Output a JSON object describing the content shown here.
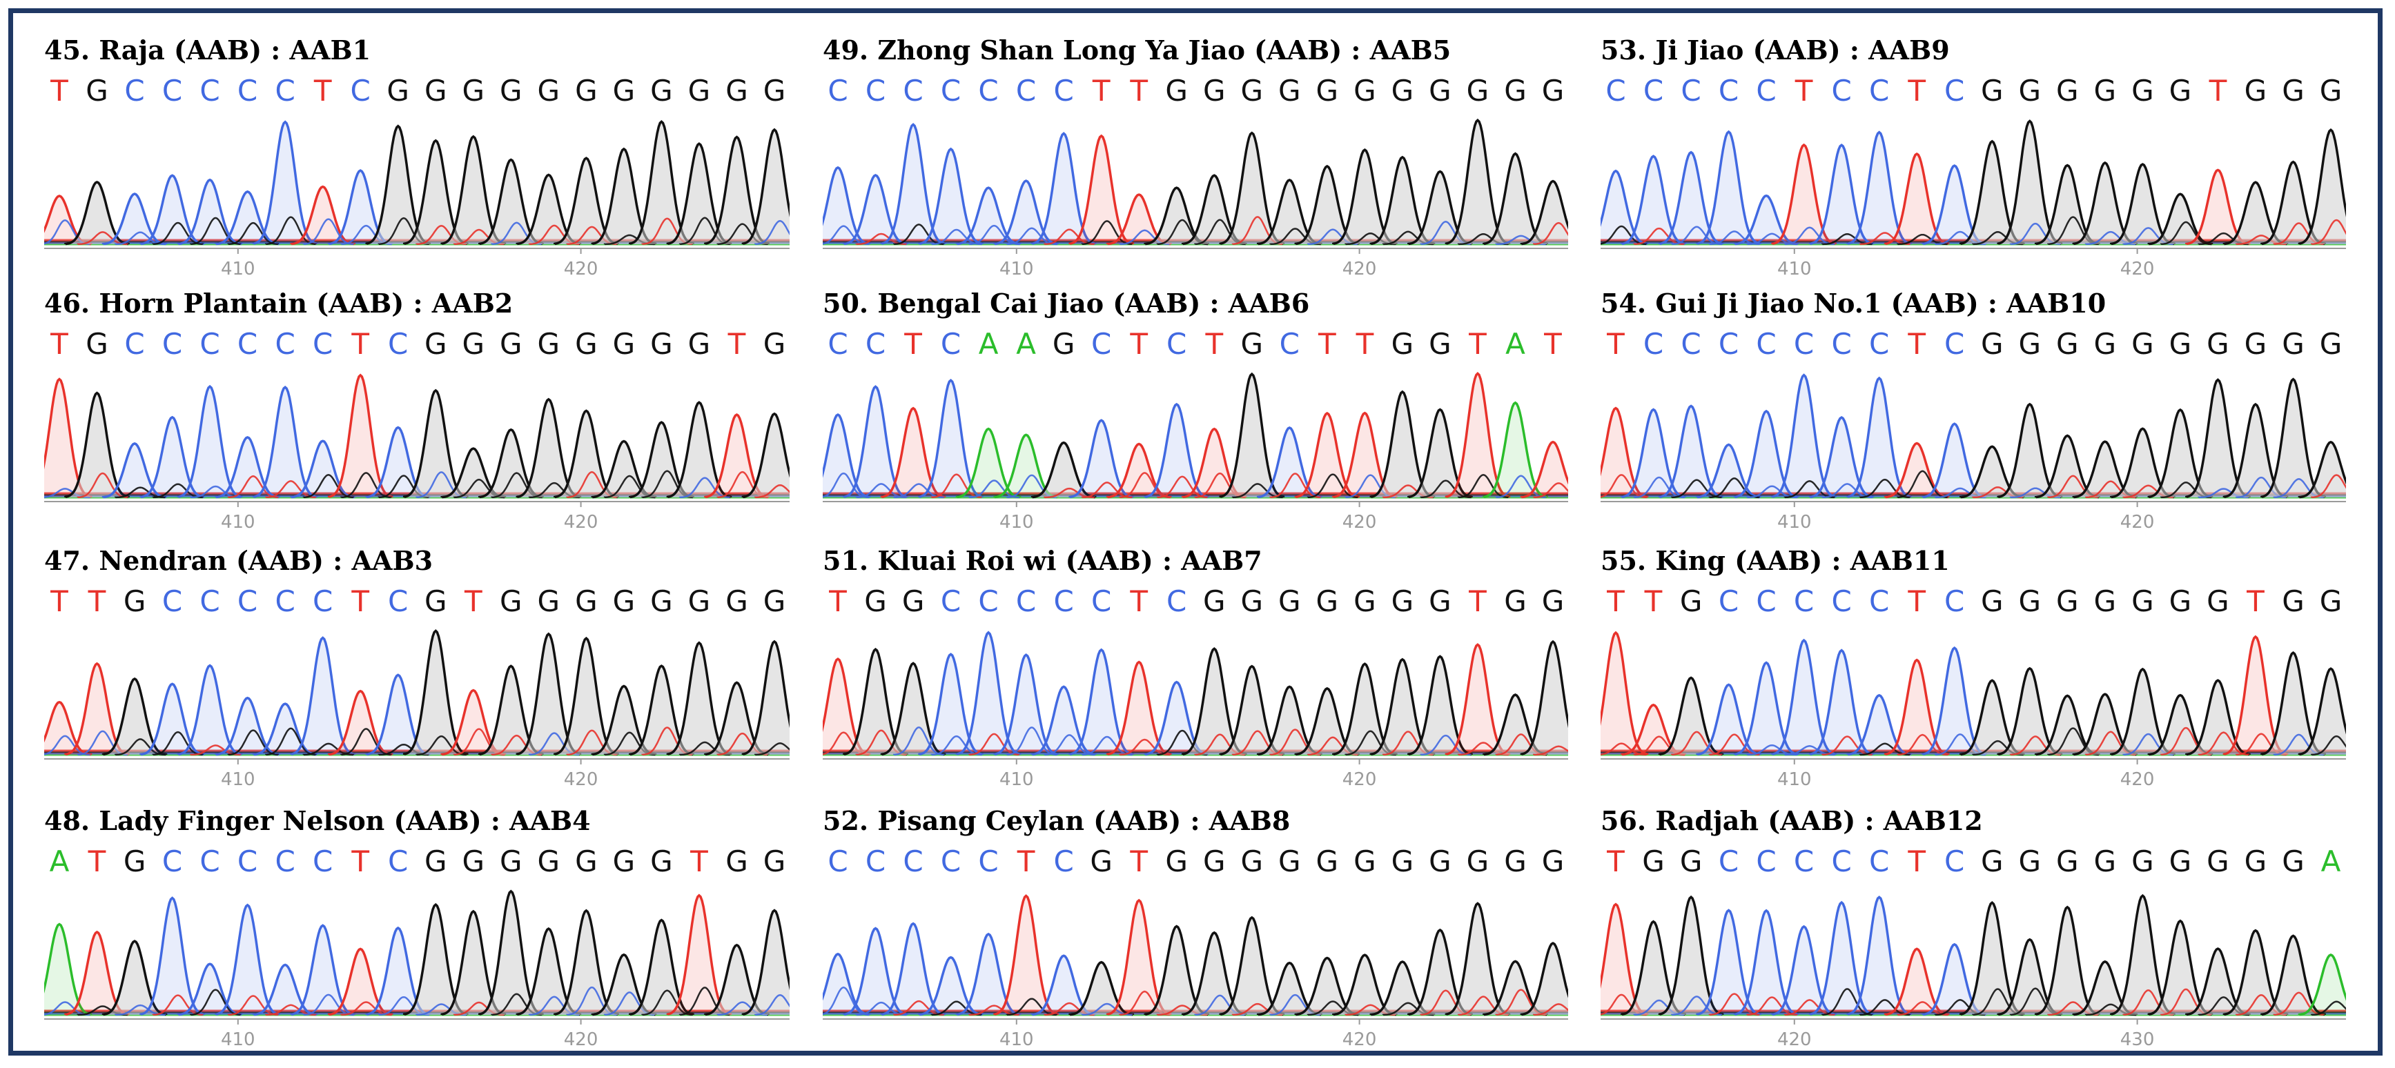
{
  "figure": {
    "border_color": "#1f3864",
    "base_colors": {
      "A": "#2bbd2b",
      "C": "#4169e1",
      "G": "#111111",
      "T": "#e8322b"
    },
    "axis_color": "#9a9a9a"
  },
  "panels": [
    {
      "title": "45. Raja (AAB) : AAB1",
      "sequence": "TGCCCCCTCGGGGGGGGGGG",
      "ticks": [
        "410",
        "420"
      ]
    },
    {
      "title": "46. Horn Plantain (AAB) : AAB2",
      "sequence": "TGCCCCCCTCGGGGGGGGTG",
      "ticks": [
        "410",
        "420"
      ]
    },
    {
      "title": "47. Nendran (AAB) : AAB3",
      "sequence": "TTGCCCCCTCGTGGGGGGGG",
      "ticks": [
        "410",
        "420"
      ]
    },
    {
      "title": "48. Lady Finger Nelson (AAB) : AAB4",
      "sequence": "ATGCCCCCTCGGGGGGGTGG",
      "ticks": [
        "410",
        "420"
      ]
    },
    {
      "title": "49. Zhong Shan Long Ya  Jiao (AAB) : AAB5",
      "sequence": "CCCCCCCTTGGGGGGGGGGG",
      "ticks": [
        "410",
        "420"
      ]
    },
    {
      "title": "50. Bengal Cai Jiao (AAB) : AAB6",
      "sequence": "CCTCAAGCTCTGCTTGGTAT",
      "ticks": [
        "410",
        "420"
      ]
    },
    {
      "title": "51. Kluai Roi wi (AAB) : AAB7",
      "sequence": "TGGCCCCCTCGGGGGGGTGG",
      "ticks": [
        "410",
        "420"
      ]
    },
    {
      "title": "52. Pisang Ceylan (AAB) : AAB8",
      "sequence": "CCCCCTCGTGGGGGGGGGGG",
      "ticks": [
        "410",
        "420"
      ]
    },
    {
      "title": "53. Ji Jiao (AAB) : AAB9",
      "sequence": "CCCCCTCCTCGGGGGGTGGG",
      "ticks": [
        "410",
        "420"
      ]
    },
    {
      "title": "54. Gui Ji Jiao No.1 (AAB) : AAB10",
      "sequence": "TCCCCCCCTCGGGGGGGGGG",
      "ticks": [
        "410",
        "420"
      ]
    },
    {
      "title": "55. King (AAB) : AAB11",
      "sequence": "TTGCCCCCTCGGGGGGGTGG",
      "ticks": [
        "410",
        "420"
      ]
    },
    {
      "title": "56. Radjah  (AAB) : AAB12",
      "sequence": "TGGCCCCCTCGGGGGGGGGA",
      "ticks": [
        "420",
        "430"
      ]
    }
  ]
}
